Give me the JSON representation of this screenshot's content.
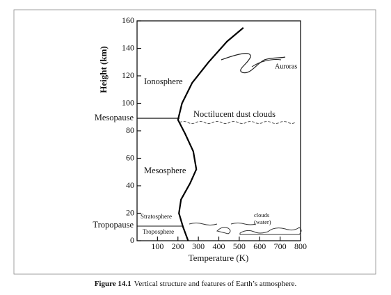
{
  "chart_data": {
    "type": "line",
    "x_label": "Temperature (K)",
    "y_label": "Height (km)",
    "xlim": [
      0,
      800
    ],
    "xticks": [
      100,
      200,
      300,
      400,
      500,
      600,
      700,
      800
    ],
    "ylim": [
      0,
      160
    ],
    "yticks": [
      0,
      20,
      40,
      60,
      80,
      100,
      120,
      140,
      160
    ],
    "x": [
      250,
      225,
      205,
      215,
      260,
      290,
      275,
      235,
      200,
      220,
      270,
      350,
      440,
      520
    ],
    "series": [
      {
        "color": "#000000",
        "values": [
          0,
          10,
          20,
          30,
          42,
          52,
          65,
          78,
          88,
          100,
          115,
          130,
          145,
          155
        ]
      }
    ],
    "annotations": [
      "Auroras",
      "Ionosphere",
      "Mesopause",
      "Noctilucent dust clouds",
      "Mesosphere",
      "Stratosphere",
      "clouds",
      "(water)",
      "Tropopause",
      "Troposphere"
    ],
    "caption_label": "Figure 14.1",
    "caption": "Vertical structure and features of Earth’s atmosphere."
  }
}
